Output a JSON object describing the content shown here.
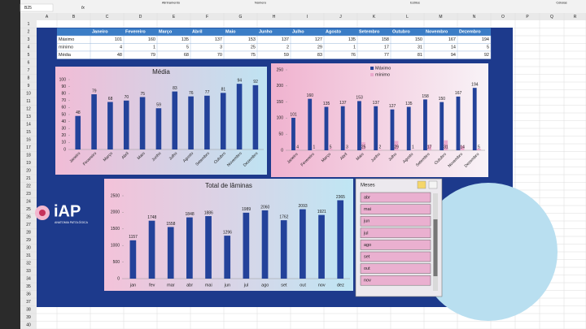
{
  "ribbon": {
    "groups": [
      "Alinhamento",
      "Número",
      "Estilos",
      "Células"
    ]
  },
  "formula_bar": {
    "name_box": "B25",
    "fx": "fx"
  },
  "sheet": {
    "columns": [
      "A",
      "B",
      "C",
      "D",
      "E",
      "F",
      "G",
      "H",
      "I",
      "J",
      "K",
      "L",
      "M",
      "N",
      "O",
      "P",
      "Q",
      "R"
    ],
    "rows": [
      1,
      2,
      3,
      4,
      5,
      6,
      7,
      8,
      9,
      10,
      11,
      12,
      13,
      14,
      15,
      16,
      17,
      18,
      19,
      20,
      21,
      22,
      23,
      24,
      25,
      26,
      27,
      28,
      29,
      30,
      31,
      32,
      33,
      34,
      35,
      36,
      37,
      38,
      39,
      40
    ]
  },
  "table": {
    "header": [
      "Janeiro",
      "Fevereiro",
      "Março",
      "Abril",
      "Maio",
      "Junho",
      "Julho",
      "Agosto",
      "Setembro",
      "Outubro",
      "Novembro",
      "Dezembro"
    ],
    "rows": [
      {
        "label": "Máximo",
        "values": [
          101,
          160,
          135,
          137,
          153,
          137,
          127,
          135,
          158,
          150,
          167,
          194
        ]
      },
      {
        "label": "mínimo",
        "values": [
          4,
          1,
          5,
          3,
          25,
          2,
          29,
          1,
          17,
          31,
          14,
          5
        ]
      },
      {
        "label": "Média",
        "values": [
          48,
          79,
          68,
          70,
          75,
          59,
          83,
          76,
          77,
          81,
          94,
          92
        ]
      }
    ]
  },
  "chart_data": [
    {
      "type": "bar",
      "title": "Média",
      "categories": [
        "Janeiro",
        "Fevereiro",
        "Março",
        "Abril",
        "Maio",
        "Junho",
        "Julho",
        "Agosto",
        "Setembro",
        "Outubro",
        "Novembro",
        "Dezembro"
      ],
      "values": [
        48,
        79,
        68,
        70,
        75,
        59,
        83,
        76,
        77,
        81,
        94,
        92
      ],
      "color": "#23429a",
      "ylim": [
        0,
        100
      ],
      "yticks": [
        0,
        10,
        20,
        30,
        40,
        50,
        60,
        70,
        80,
        90,
        100
      ]
    },
    {
      "type": "bar",
      "categories": [
        "Janeiro",
        "Fevereiro",
        "Março",
        "Abril",
        "Maio",
        "Junho",
        "Julho",
        "Agosto",
        "Setembro",
        "Outubro",
        "Novembro",
        "Dezembro"
      ],
      "series": [
        {
          "name": "Máximo",
          "color": "#23429a",
          "values": [
            101,
            160,
            135,
            137,
            153,
            137,
            127,
            135,
            158,
            150,
            167,
            194
          ]
        },
        {
          "name": "mínimo",
          "color": "#eaa9cc",
          "values": [
            4,
            1,
            5,
            3,
            25,
            2,
            29,
            1,
            17,
            31,
            14,
            5
          ]
        }
      ],
      "ylim": [
        0,
        250
      ],
      "yticks": [
        0,
        50,
        100,
        150,
        200,
        250
      ],
      "legend": "top-right"
    },
    {
      "type": "bar",
      "title": "Total de lâminas",
      "categories": [
        "jan",
        "fev",
        "mar",
        "abr",
        "mai",
        "jun",
        "jul",
        "ago",
        "set",
        "out",
        "nov",
        "dez"
      ],
      "values": [
        1157,
        1748,
        1558,
        1848,
        1886,
        1296,
        1989,
        2060,
        1762,
        2093,
        1921,
        2365
      ],
      "color": "#23429a",
      "ylim": [
        0,
        2500
      ],
      "yticks": [
        0,
        500,
        1000,
        1500,
        2000,
        2500
      ]
    }
  ],
  "slicer": {
    "title": "Meses",
    "items": [
      "abr",
      "mai",
      "jun",
      "jul",
      "ago",
      "set",
      "out",
      "nov"
    ]
  },
  "logo": {
    "name": "iAP",
    "tagline": "ANATOMIA PATOLÓGICA"
  }
}
